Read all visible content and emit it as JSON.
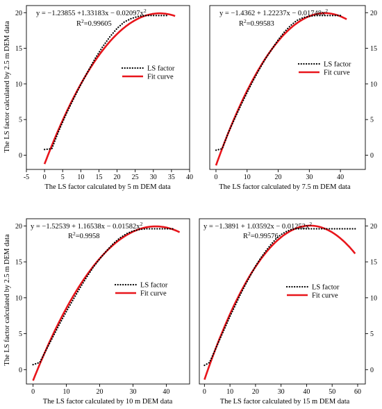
{
  "figure": {
    "shared_ylabel_top": "The LS factor calculated by 2.5 m DEM data",
    "shared_ylabel_bottom": "The LS factor calculated by 2.5 m DEM data"
  },
  "colors": {
    "ls_factor": "#000000",
    "fit_curve": "#e8151b",
    "axes": "#000000"
  },
  "chart_data": [
    {
      "type": "line",
      "panel": "top-left",
      "xlabel": "The LS factor calculated by 5 m DEM data",
      "ylabel": "The LS factor calculated by 2.5 m DEM data",
      "xlim": [
        -5,
        40
      ],
      "ylim": [
        -2,
        21
      ],
      "xticks": [
        -5,
        0,
        5,
        10,
        15,
        20,
        25,
        30,
        35,
        40
      ],
      "yticks": [
        0,
        5,
        10,
        15,
        20
      ],
      "y_axis_side": "left",
      "legend_placement": "center-right",
      "equation": "y = −1.23855 +1.33183x − 0.02097x",
      "r_squared": "R",
      "r_squared_value": "=0.99605",
      "fit": {
        "a": -1.23855,
        "b": 1.33183,
        "c": -0.02097,
        "x_range": [
          0,
          36
        ]
      },
      "series": [
        {
          "name": "LS factor",
          "style": "dotted",
          "x": [
            0,
            2,
            4,
            6,
            8,
            10,
            12,
            14,
            16,
            18,
            20,
            22,
            24,
            26,
            28,
            30,
            32,
            34
          ],
          "y": [
            0.8,
            0.9,
            3.5,
            5.8,
            7.9,
            9.9,
            11.8,
            13.6,
            15.2,
            16.6,
            17.8,
            18.7,
            19.2,
            19.5,
            19.6,
            19.6,
            19.6,
            19.6
          ]
        },
        {
          "name": "Fit curve",
          "style": "solid"
        }
      ]
    },
    {
      "type": "line",
      "panel": "top-right",
      "xlabel": "The LS factor calculated by 7.5 m DEM data",
      "ylabel": "",
      "xlim": [
        -2,
        48
      ],
      "ylim": [
        -2,
        21
      ],
      "xticks": [
        0,
        10,
        20,
        30,
        40
      ],
      "yticks": [
        0,
        5,
        10,
        15,
        20
      ],
      "y_axis_side": "right",
      "legend_placement": "center-right",
      "equation": "y = −1.4362 + 1.22237x − 0.01748x",
      "r_squared": "R",
      "r_squared_value": "=0.99583",
      "fit": {
        "a": -1.4362,
        "b": 1.22237,
        "c": -0.01748,
        "x_range": [
          0,
          42
        ]
      },
      "series": [
        {
          "name": "LS factor",
          "style": "dotted",
          "x": [
            0,
            2,
            4,
            6,
            8,
            10,
            12,
            14,
            16,
            18,
            20,
            22,
            24,
            26,
            28,
            30,
            32,
            34,
            36,
            38,
            40
          ],
          "y": [
            0.7,
            0.9,
            3.2,
            5.1,
            7.0,
            8.8,
            10.5,
            12.1,
            13.6,
            14.9,
            16.2,
            17.3,
            18.2,
            18.9,
            19.3,
            19.5,
            19.6,
            19.6,
            19.6,
            19.6,
            19.6
          ]
        },
        {
          "name": "Fit curve",
          "style": "solid"
        }
      ]
    },
    {
      "type": "line",
      "panel": "bottom-left",
      "xlabel": "The LS factor calculated by 10 m DEM data",
      "ylabel": "The LS factor calculated by 2.5 m DEM data",
      "xlim": [
        -2,
        47
      ],
      "ylim": [
        -2,
        21
      ],
      "xticks": [
        0,
        10,
        20,
        30,
        40
      ],
      "yticks": [
        0,
        5,
        10,
        15,
        20
      ],
      "y_axis_side": "left",
      "legend_placement": "center-right",
      "equation": "y = −1.52539 + 1.16538x − 0.01582x",
      "r_squared": "R",
      "r_squared_value": "=0.9958",
      "fit": {
        "a": -1.52539,
        "b": 1.16538,
        "c": -0.01582,
        "x_range": [
          0,
          44
        ]
      },
      "series": [
        {
          "name": "LS factor",
          "style": "dotted",
          "x": [
            0,
            2,
            4,
            6,
            8,
            10,
            12,
            14,
            16,
            18,
            20,
            22,
            24,
            26,
            28,
            30,
            32,
            34,
            36,
            38,
            40,
            42
          ],
          "y": [
            0.7,
            1.0,
            2.8,
            4.6,
            6.4,
            8.1,
            9.7,
            11.3,
            12.8,
            14.2,
            15.4,
            16.5,
            17.5,
            18.3,
            18.9,
            19.3,
            19.5,
            19.6,
            19.6,
            19.6,
            19.6,
            19.6
          ]
        },
        {
          "name": "Fit curve",
          "style": "solid"
        }
      ]
    },
    {
      "type": "line",
      "panel": "bottom-right",
      "xlabel": "The LS factor calculated by 15 m DEM data",
      "ylabel": "",
      "xlim": [
        -2,
        63
      ],
      "ylim": [
        -2,
        21
      ],
      "xticks": [
        0,
        10,
        20,
        30,
        40,
        50,
        60
      ],
      "yticks": [
        0,
        5,
        10,
        15,
        20
      ],
      "y_axis_side": "right",
      "legend_placement": "center-right",
      "equation": "y = −1.3891 + 1.03592x − 0.01252x",
      "r_squared": "R",
      "r_squared_value": "=0.99576",
      "fit": {
        "a": -1.3891,
        "b": 1.03592,
        "c": -0.01252,
        "x_range": [
          0,
          59
        ]
      },
      "series": [
        {
          "name": "LS factor",
          "style": "dotted",
          "x": [
            0,
            2,
            4,
            6,
            8,
            10,
            12,
            14,
            16,
            18,
            20,
            22,
            24,
            26,
            28,
            30,
            32,
            34,
            36,
            38,
            40,
            44,
            48,
            52,
            56,
            59
          ],
          "y": [
            0.6,
            1.0,
            2.6,
            4.2,
            5.8,
            7.4,
            8.9,
            10.4,
            11.8,
            13.1,
            14.4,
            15.5,
            16.5,
            17.4,
            18.2,
            18.8,
            19.2,
            19.5,
            19.6,
            19.6,
            19.6,
            19.6,
            19.6,
            19.6,
            19.6,
            19.6
          ]
        },
        {
          "name": "Fit curve",
          "style": "solid"
        }
      ]
    }
  ]
}
